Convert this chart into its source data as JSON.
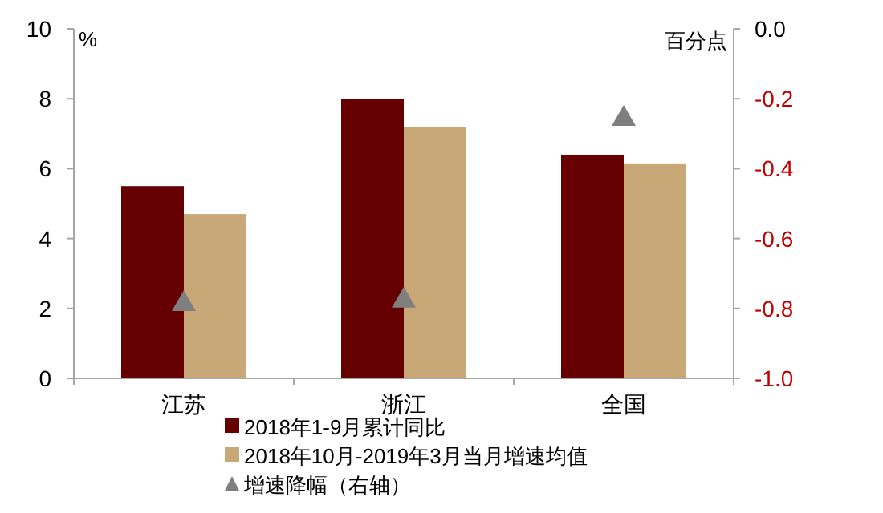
{
  "chart_data": {
    "type": "bar",
    "ylabel": "%",
    "y2label": "百分点",
    "categories": [
      "江苏",
      "浙江",
      "全国"
    ],
    "series": [
      {
        "name": "2018年1-9月累计同比",
        "color": "#660000",
        "values": [
          5.5,
          8.0,
          6.4
        ]
      },
      {
        "name": "2018年10月-2019年3月当月增速均值",
        "color": "#c9a878",
        "values": [
          4.7,
          7.2,
          6.15
        ]
      },
      {
        "name": "增速降幅（右轴）",
        "type": "scatter",
        "axis": "y2",
        "marker": "triangle",
        "color": "#7f7f7f",
        "values": [
          -0.78,
          -0.77,
          -0.25
        ]
      }
    ],
    "ylim": [
      0,
      10
    ],
    "yticks": [
      0,
      2,
      4,
      6,
      8,
      10
    ],
    "y2lim": [
      -1.0,
      0.0
    ],
    "y2ticks": [
      {
        "value": -1.0,
        "label": "-1.0"
      },
      {
        "value": -0.8,
        "label": "-0.8"
      },
      {
        "value": -0.6,
        "label": "-0.6"
      },
      {
        "value": -0.4,
        "label": "-0.4"
      },
      {
        "value": -0.2,
        "label": "-0.2"
      },
      {
        "value": 0.0,
        "label": "0.0"
      }
    ],
    "grid": false,
    "legend": "bottom"
  }
}
